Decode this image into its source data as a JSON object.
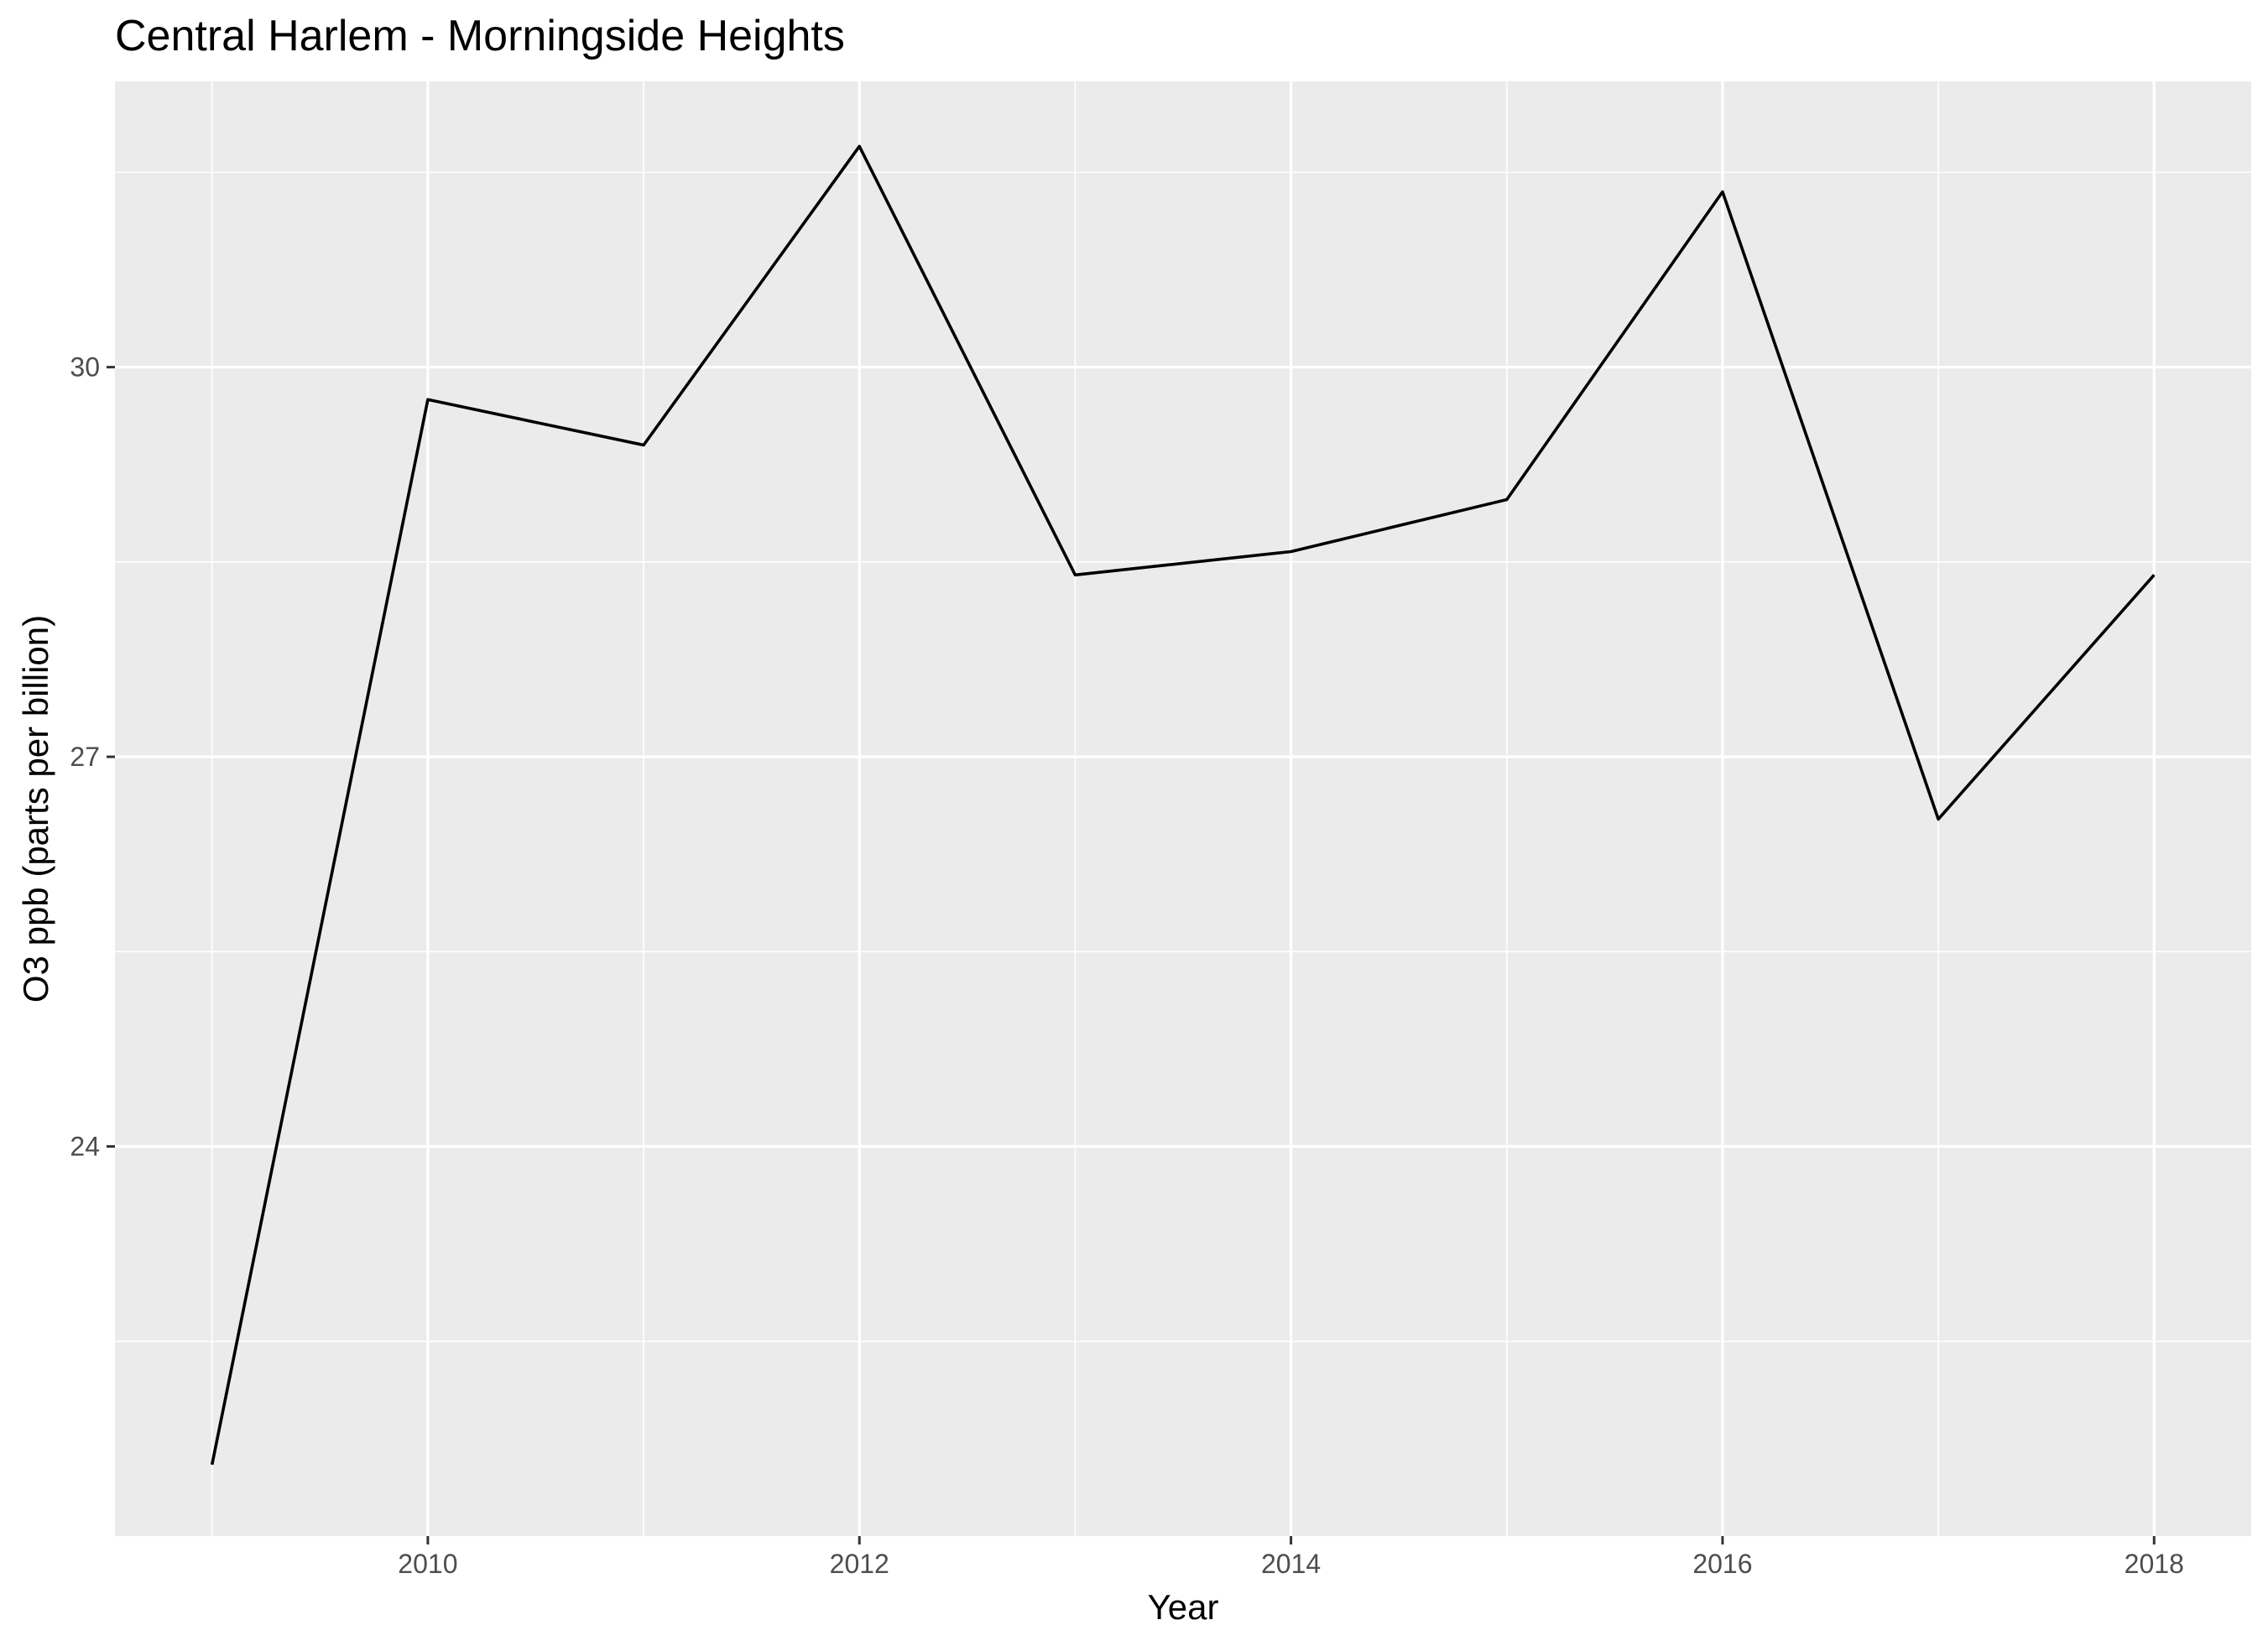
{
  "chart_data": {
    "type": "line",
    "title": "Central Harlem - Morningside Heights",
    "xlabel": "Year",
    "ylabel": "O3 ppb (parts per billion)",
    "x": [
      2009,
      2010,
      2011,
      2012,
      2013,
      2014,
      2015,
      2016,
      2017,
      2018
    ],
    "series": [
      {
        "values": [
          21.55,
          29.75,
          29.4,
          31.7,
          28.4,
          28.58,
          28.98,
          31.35,
          26.52,
          28.4
        ]
      }
    ],
    "xticks": [
      "2010",
      "2012",
      "2014",
      "2016",
      "2018"
    ],
    "yticks": [
      "24",
      "27",
      "30"
    ],
    "xlim": [
      2008.55,
      2018.45
    ],
    "ylim": [
      21.0,
      32.2
    ],
    "grid": true,
    "colors": {
      "panel": "#ebebeb",
      "grid": "#ffffff",
      "line": "#000000",
      "tick_text": "#4d4d4d"
    }
  }
}
